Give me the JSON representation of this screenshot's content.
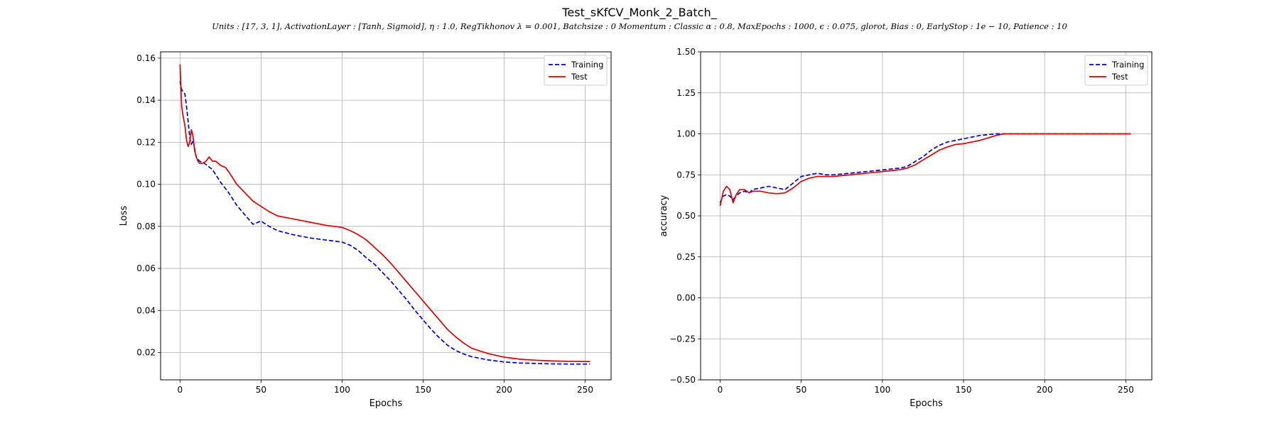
{
  "figure": {
    "title": "Test_sKfCV_Monk_2_Batch_",
    "subtitle": "Units : [17, 3, 1], ActivationLayer : [Tanh, Sigmoid], η : 1.0, RegTikhonov λ =  0.001, Batchsize :  0 Momentum : Classic α : 0.8, MaxEpochs :  1000, ϵ :  0.075, glorot, Bias :  0, EarlyStop :  1e − 10, Patience :  10"
  },
  "chart_data": [
    {
      "type": "line",
      "xlabel": "Epochs",
      "ylabel": "Loss",
      "xlim": [
        -12,
        266
      ],
      "ylim": [
        0.007,
        0.163
      ],
      "xticks": [
        0,
        50,
        100,
        150,
        200,
        250
      ],
      "yticks": [
        0.02,
        0.04,
        0.06,
        0.08,
        0.1,
        0.12,
        0.14,
        0.16
      ],
      "ytick_labels": [
        "0.02",
        "0.04",
        "0.06",
        "0.08",
        "0.10",
        "0.12",
        "0.14",
        "0.16"
      ],
      "grid": true,
      "legend": "top-right",
      "series": [
        {
          "name": "Training",
          "color": "#0000cc",
          "dash": "dashed",
          "x": [
            0,
            1,
            2,
            3,
            4,
            5,
            6,
            7,
            8,
            9,
            10,
            12,
            15,
            20,
            25,
            30,
            35,
            40,
            45,
            50,
            55,
            60,
            70,
            80,
            90,
            100,
            105,
            110,
            115,
            120,
            125,
            130,
            135,
            140,
            145,
            150,
            155,
            160,
            165,
            170,
            175,
            180,
            190,
            200,
            210,
            220,
            230,
            240,
            253
          ],
          "y": [
            0.149,
            0.145,
            0.144,
            0.143,
            0.137,
            0.13,
            0.122,
            0.119,
            0.121,
            0.117,
            0.113,
            0.111,
            0.11,
            0.107,
            0.101,
            0.096,
            0.09,
            0.0855,
            0.081,
            0.0825,
            0.08,
            0.078,
            0.076,
            0.0745,
            0.0735,
            0.0725,
            0.071,
            0.0685,
            0.065,
            0.062,
            0.058,
            0.054,
            0.0495,
            0.045,
            0.04,
            0.0355,
            0.031,
            0.027,
            0.0235,
            0.021,
            0.0193,
            0.018,
            0.0165,
            0.0155,
            0.015,
            0.0148,
            0.0146,
            0.0145,
            0.0145
          ]
        },
        {
          "name": "Test",
          "color": "#dd0000",
          "dash": "solid",
          "x": [
            0,
            1,
            2,
            3,
            4,
            5,
            6,
            7,
            8,
            9,
            10,
            11,
            12,
            14,
            16,
            18,
            20,
            22,
            25,
            28,
            30,
            35,
            40,
            45,
            50,
            55,
            60,
            70,
            80,
            90,
            100,
            105,
            110,
            115,
            120,
            125,
            130,
            135,
            140,
            145,
            150,
            155,
            160,
            165,
            170,
            175,
            180,
            190,
            200,
            210,
            220,
            230,
            240,
            253
          ],
          "y": [
            0.157,
            0.137,
            0.132,
            0.128,
            0.121,
            0.118,
            0.12,
            0.126,
            0.123,
            0.116,
            0.113,
            0.111,
            0.11,
            0.11,
            0.111,
            0.113,
            0.111,
            0.111,
            0.109,
            0.108,
            0.106,
            0.1,
            0.096,
            0.092,
            0.0895,
            0.087,
            0.085,
            0.0835,
            0.082,
            0.0805,
            0.0795,
            0.078,
            0.076,
            0.0735,
            0.07,
            0.0665,
            0.0625,
            0.058,
            0.0535,
            0.049,
            0.0445,
            0.04,
            0.0355,
            0.031,
            0.0275,
            0.0245,
            0.022,
            0.0195,
            0.0178,
            0.0168,
            0.0163,
            0.016,
            0.0158,
            0.0157
          ]
        }
      ]
    },
    {
      "type": "line",
      "xlabel": "Epochs",
      "ylabel": "accuracy",
      "xlim": [
        -12,
        266
      ],
      "ylim": [
        -0.5,
        1.5
      ],
      "xticks": [
        0,
        50,
        100,
        150,
        200,
        250
      ],
      "yticks": [
        -0.5,
        -0.25,
        0.0,
        0.25,
        0.5,
        0.75,
        1.0,
        1.25,
        1.5
      ],
      "ytick_labels": [
        "−0.50",
        "−0.25",
        "0.00",
        "0.25",
        "0.50",
        "0.75",
        "1.00",
        "1.25",
        "1.50"
      ],
      "grid": true,
      "legend": "top-right",
      "series": [
        {
          "name": "Training",
          "color": "#0000cc",
          "dash": "dashed",
          "x": [
            0,
            2,
            4,
            6,
            8,
            10,
            12,
            15,
            18,
            20,
            25,
            30,
            35,
            40,
            45,
            50,
            55,
            60,
            65,
            70,
            75,
            80,
            85,
            90,
            95,
            100,
            105,
            110,
            115,
            120,
            125,
            130,
            135,
            140,
            145,
            150,
            155,
            160,
            165,
            170,
            175,
            180,
            200,
            253
          ],
          "y": [
            0.58,
            0.62,
            0.63,
            0.62,
            0.6,
            0.62,
            0.64,
            0.65,
            0.64,
            0.66,
            0.67,
            0.68,
            0.67,
            0.66,
            0.7,
            0.74,
            0.75,
            0.76,
            0.75,
            0.75,
            0.755,
            0.76,
            0.765,
            0.77,
            0.775,
            0.78,
            0.785,
            0.79,
            0.8,
            0.83,
            0.86,
            0.9,
            0.93,
            0.95,
            0.96,
            0.97,
            0.98,
            0.99,
            0.995,
            1.0,
            1.0,
            1.0,
            1.0,
            1.0
          ]
        },
        {
          "name": "Test",
          "color": "#dd0000",
          "dash": "solid",
          "x": [
            0,
            2,
            4,
            6,
            8,
            10,
            12,
            15,
            18,
            20,
            25,
            30,
            35,
            40,
            45,
            50,
            55,
            60,
            65,
            70,
            75,
            80,
            85,
            90,
            95,
            100,
            105,
            110,
            115,
            120,
            125,
            130,
            135,
            140,
            145,
            150,
            155,
            160,
            165,
            170,
            175,
            180,
            200,
            253
          ],
          "y": [
            0.56,
            0.65,
            0.68,
            0.66,
            0.58,
            0.63,
            0.66,
            0.66,
            0.64,
            0.65,
            0.65,
            0.64,
            0.635,
            0.64,
            0.67,
            0.71,
            0.73,
            0.74,
            0.74,
            0.74,
            0.745,
            0.75,
            0.755,
            0.76,
            0.765,
            0.77,
            0.775,
            0.78,
            0.79,
            0.81,
            0.84,
            0.87,
            0.9,
            0.92,
            0.935,
            0.94,
            0.95,
            0.96,
            0.975,
            0.99,
            1.0,
            1.0,
            1.0,
            1.0
          ]
        }
      ]
    }
  ]
}
